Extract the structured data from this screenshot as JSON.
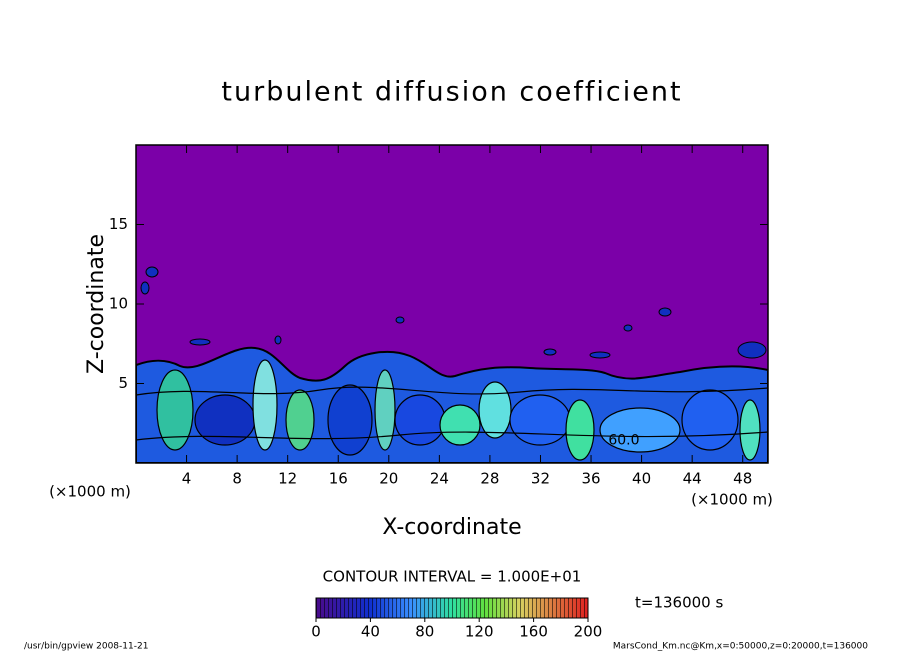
{
  "chart_data": {
    "type": "contour",
    "title": "turbulent diffusion coefficient",
    "x_label": "X-coordinate",
    "y_label": "Z-coordinate",
    "x_unit": "(×1000 m)",
    "xlim": [
      0,
      50
    ],
    "ylim": [
      0,
      20
    ],
    "xticks": [
      4,
      8,
      12,
      16,
      20,
      24,
      28,
      32,
      36,
      40,
      44,
      48
    ],
    "yticks": [
      5,
      10,
      15
    ],
    "contour_interval": "CONTOUR INTERVAL = 1.000E+01",
    "time_label": "t=136000 s",
    "annotations": [
      {
        "text": "60.0",
        "x": 38.6,
        "y": 1.4
      }
    ],
    "colorbar": {
      "lim": [
        0,
        200
      ],
      "ticks": [
        0,
        40,
        80,
        120,
        160,
        200
      ]
    },
    "footer_left": "/usr/bin/gpview  2008-11-21",
    "footer_right": "MarsCond_Km.nc@Km,x=0:50000,z=0:20000,t=136000"
  }
}
